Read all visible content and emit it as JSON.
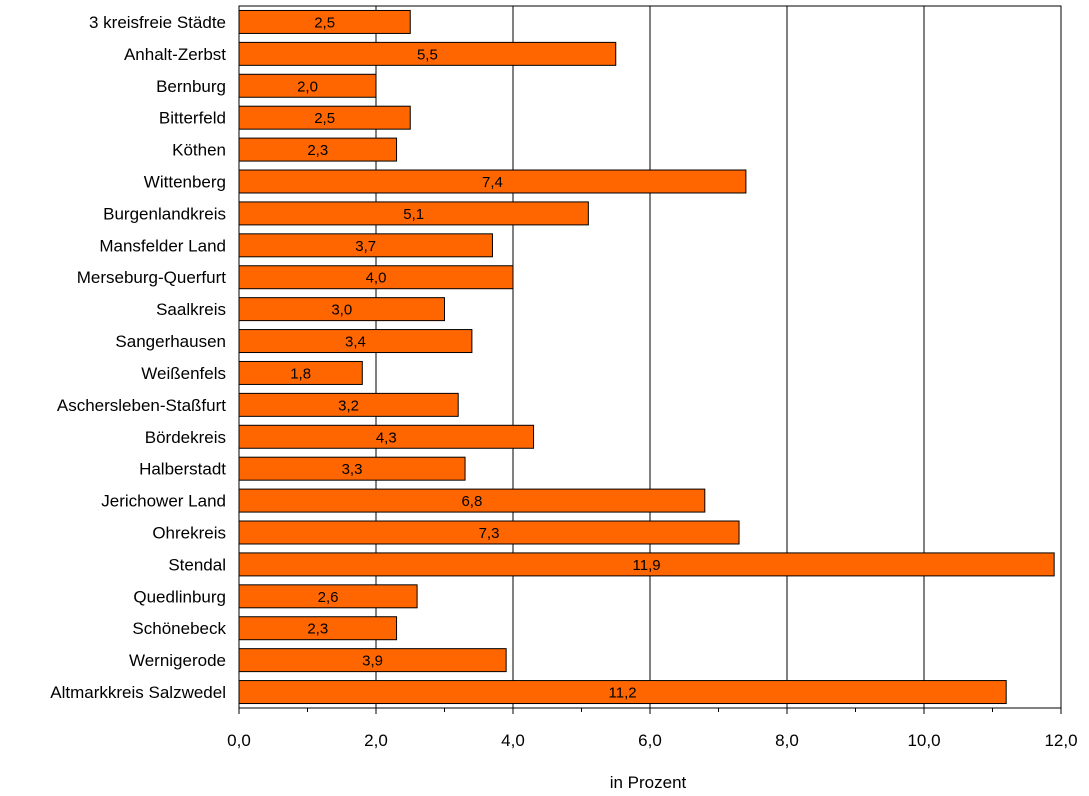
{
  "chart_data": {
    "type": "bar",
    "orientation": "horizontal",
    "categories": [
      "3 kreisfreie Städte",
      "Anhalt-Zerbst",
      "Bernburg",
      "Bitterfeld",
      "Köthen",
      "Wittenberg",
      "Burgenlandkreis",
      "Mansfelder Land",
      "Merseburg-Querfurt",
      "Saalkreis",
      "Sangerhausen",
      "Weißenfels",
      "Aschersleben-Staßfurt",
      "Bördekreis",
      "Halberstadt",
      "Jerichower Land",
      "Ohrekreis",
      "Stendal",
      "Quedlinburg",
      "Schönebeck",
      "Wernigerode",
      "Altmarkkreis Salzwedel"
    ],
    "values": [
      2.5,
      5.5,
      2.0,
      2.5,
      2.3,
      7.4,
      5.1,
      3.7,
      4.0,
      3.0,
      3.4,
      1.8,
      3.2,
      4.3,
      3.3,
      6.8,
      7.3,
      11.9,
      2.6,
      2.3,
      3.9,
      11.2
    ],
    "value_labels": [
      "2,5",
      "5,5",
      "2,0",
      "2,5",
      "2,3",
      "7,4",
      "5,1",
      "3,7",
      "4,0",
      "3,0",
      "3,4",
      "1,8",
      "3,2",
      "4,3",
      "3,3",
      "6,8",
      "7,3",
      "11,9",
      "2,6",
      "2,3",
      "3,9",
      "11,2"
    ],
    "xlabel": "in Prozent",
    "xlim": [
      0,
      12
    ],
    "x_ticks": [
      0,
      2,
      4,
      6,
      8,
      10,
      12
    ],
    "x_tick_labels": [
      "0,0",
      "2,0",
      "4,0",
      "6,0",
      "8,0",
      "10,0",
      "12,0"
    ],
    "grid": "vertical",
    "bar_color": "#FF6600",
    "bar_outline_color": "#000000"
  }
}
